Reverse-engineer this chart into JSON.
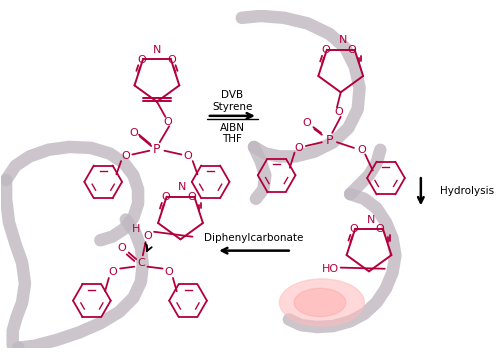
{
  "bg_color": "#ffffff",
  "chain_color": "#c0b8c0",
  "chem_color": "#b3003b",
  "fig_width": 5.0,
  "fig_height": 3.58,
  "dpi": 100,
  "top_arrow_labels": [
    "DVB",
    "Styrene",
    "AIBN",
    "THF"
  ],
  "right_arrow_label": "Hydrolysis",
  "bottom_arrow_label": "Diphenylcarbonate"
}
